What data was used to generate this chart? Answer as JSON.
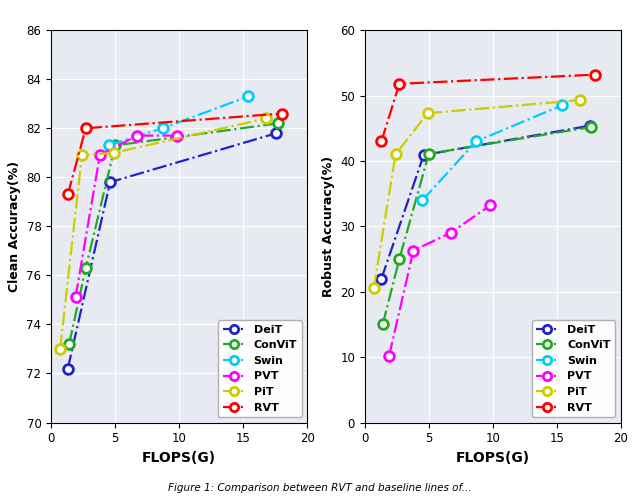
{
  "left_plot": {
    "ylabel": "Clean Accuracy(%)",
    "xlabel": "FLOPS(G)",
    "xlim": [
      0,
      20
    ],
    "ylim": [
      70,
      86
    ],
    "yticks": [
      70,
      72,
      74,
      76,
      78,
      80,
      82,
      84,
      86
    ],
    "xticks": [
      0,
      5,
      10,
      15,
      20
    ],
    "series": {
      "DeiT": {
        "flops": [
          1.3,
          4.6,
          17.6
        ],
        "acc": [
          72.2,
          79.8,
          81.8
        ],
        "color": "#2222cc"
      },
      "ConViT": {
        "flops": [
          1.4,
          2.7,
          5.0,
          17.7
        ],
        "acc": [
          73.2,
          76.3,
          81.3,
          82.2
        ],
        "color": "#22aa22"
      },
      "Swin": {
        "flops": [
          4.5,
          8.7,
          15.4
        ],
        "acc": [
          81.3,
          82.0,
          83.3
        ],
        "color": "#00ccff"
      },
      "PVT": {
        "flops": [
          1.9,
          3.8,
          6.7,
          9.8
        ],
        "acc": [
          75.1,
          80.9,
          81.7,
          81.7
        ],
        "color": "#ff00ff"
      },
      "PiT": {
        "flops": [
          0.7,
          2.4,
          4.9,
          16.8
        ],
        "acc": [
          73.0,
          80.9,
          81.0,
          82.4
        ],
        "color": "#cccc00"
      },
      "RVT": {
        "flops": [
          1.3,
          2.7,
          18.0
        ],
        "acc": [
          79.3,
          82.0,
          82.6
        ],
        "color": "#ff0000"
      }
    }
  },
  "right_plot": {
    "ylabel": "Robust Accuracy(%)",
    "xlabel": "FLOPS(G)",
    "xlim": [
      0,
      20
    ],
    "ylim": [
      0,
      60
    ],
    "yticks": [
      0,
      10,
      20,
      30,
      40,
      50,
      60
    ],
    "xticks": [
      0,
      5,
      10,
      15,
      20
    ],
    "series": {
      "DeiT": {
        "flops": [
          1.3,
          4.6,
          17.6
        ],
        "acc": [
          22.0,
          40.9,
          45.4
        ],
        "color": "#2222cc"
      },
      "ConViT": {
        "flops": [
          1.4,
          2.7,
          5.0,
          17.7
        ],
        "acc": [
          15.0,
          25.0,
          41.1,
          45.2
        ],
        "color": "#22aa22"
      },
      "Swin": {
        "flops": [
          4.5,
          8.7,
          15.4
        ],
        "acc": [
          34.0,
          43.0,
          48.5
        ],
        "color": "#00ccff"
      },
      "PVT": {
        "flops": [
          1.9,
          3.8,
          6.7,
          9.8
        ],
        "acc": [
          10.2,
          26.3,
          29.0,
          33.2
        ],
        "color": "#ff00ff"
      },
      "PiT": {
        "flops": [
          0.7,
          2.4,
          4.9,
          16.8
        ],
        "acc": [
          20.5,
          41.0,
          47.3,
          49.3
        ],
        "color": "#cccc00"
      },
      "RVT": {
        "flops": [
          1.3,
          2.7,
          18.0
        ],
        "acc": [
          43.0,
          51.8,
          53.2
        ],
        "color": "#ff0000"
      }
    }
  },
  "legend_labels": [
    "DeiT",
    "ConViT",
    "Swin",
    "PVT",
    "PiT",
    "RVT"
  ],
  "legend_colors": [
    "#2222cc",
    "#22aa22",
    "#00ccff",
    "#ff00ff",
    "#cccc00",
    "#ff0000"
  ],
  "background_color": "#e8eaf2",
  "fig_caption": "Figure 1: Comparison between RVT and baseline lines of..."
}
